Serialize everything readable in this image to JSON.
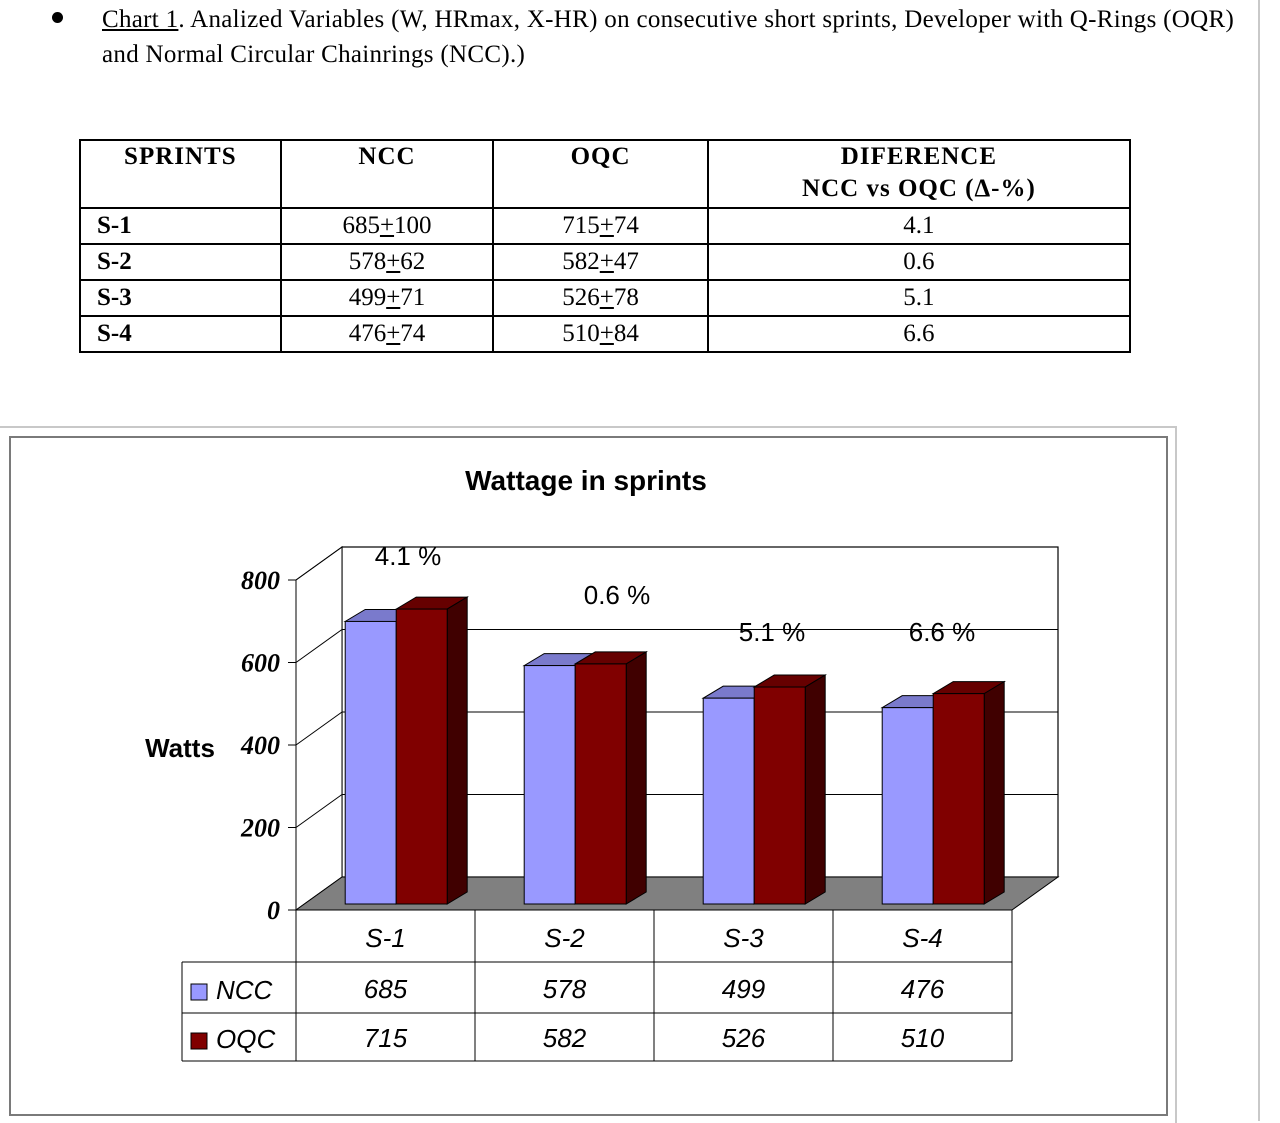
{
  "caption": {
    "label": "Chart 1",
    "text": ". Analized Variables (W, HRmax, X-HR) on consecutive short sprints, Developer with Q-Rings (OQR) and Normal Circular Chainrings (NCC).)"
  },
  "table": {
    "headers": [
      "SPRINTS",
      "NCC",
      "OQC",
      "DIFERENCE",
      "NCC vs OQC (Δ-%)"
    ],
    "rows": [
      {
        "sprint": "S-1",
        "ncc_mean": "685",
        "ncc_sd": "100",
        "oqc_mean": "715",
        "oqc_sd": "74",
        "diff": "4.1"
      },
      {
        "sprint": "S-2",
        "ncc_mean": "578",
        "ncc_sd": "62",
        "oqc_mean": "582",
        "oqc_sd": "47",
        "diff": "0.6"
      },
      {
        "sprint": "S-3",
        "ncc_mean": "499",
        "ncc_sd": "71",
        "oqc_mean": "526",
        "oqc_sd": "78",
        "diff": "5.1"
      },
      {
        "sprint": "S-4",
        "ncc_mean": "476",
        "ncc_sd": "74",
        "oqc_mean": "510",
        "oqc_sd": "84",
        "diff": "6.6"
      }
    ]
  },
  "chart_data": {
    "type": "bar",
    "title": "Wattage in sprints",
    "ylabel": "Watts",
    "xlabel": "",
    "categories": [
      "S-1",
      "S-2",
      "S-3",
      "S-4"
    ],
    "series": [
      {
        "name": "NCC",
        "values": [
          685,
          578,
          499,
          476
        ],
        "color": "#9999ff"
      },
      {
        "name": "OQC",
        "values": [
          715,
          582,
          526,
          510
        ],
        "color": "#800000"
      }
    ],
    "annotations": [
      "4.1 %",
      "0.6 %",
      "5.1 %",
      "6.6 %"
    ],
    "ylim": [
      0,
      800
    ],
    "yticks": [
      0,
      200,
      400,
      600,
      800
    ],
    "grid": true,
    "legend": "data-table-bottom",
    "style": "3d-clustered-column"
  }
}
